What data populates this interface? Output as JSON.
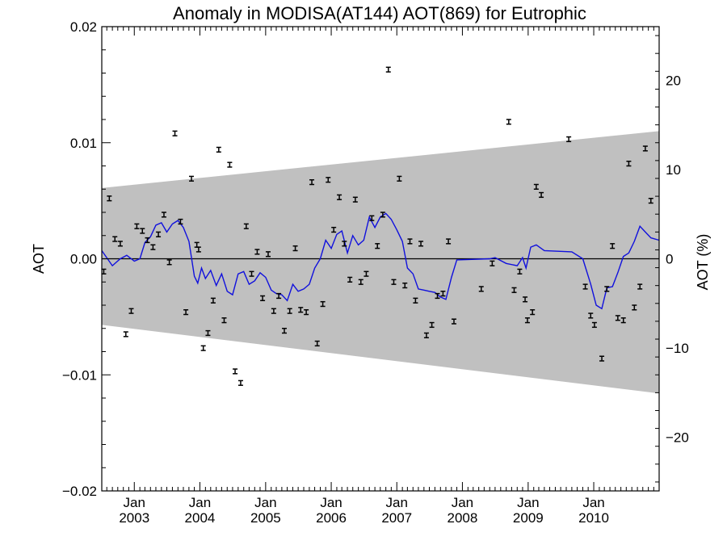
{
  "chart_data": {
    "type": "scatter",
    "title": "Anomaly in MODISA(AT144) AOT(869) for Eutrophic",
    "ylabel": "AOT",
    "ylabel_right": "AOT (%)",
    "xlim": [
      "2002-07-04",
      "2010-12-31"
    ],
    "ylim": [
      -0.02,
      0.02
    ],
    "ylim_right": [
      -26,
      26
    ],
    "x_tick_labels": [
      {
        "date": "2003-01-01",
        "month": "Jan",
        "year": "2003"
      },
      {
        "date": "2004-01-01",
        "month": "Jan",
        "year": "2004"
      },
      {
        "date": "2005-01-01",
        "month": "Jan",
        "year": "2005"
      },
      {
        "date": "2006-01-01",
        "month": "Jan",
        "year": "2006"
      },
      {
        "date": "2007-01-01",
        "month": "Jan",
        "year": "2007"
      },
      {
        "date": "2008-01-01",
        "month": "Jan",
        "year": "2008"
      },
      {
        "date": "2009-01-01",
        "month": "Jan",
        "year": "2009"
      },
      {
        "date": "2010-01-01",
        "month": "Jan",
        "year": "2010"
      }
    ],
    "y_ticks": [
      -0.02,
      -0.01,
      0.0,
      0.01,
      0.02
    ],
    "y_tick_labels": [
      "−0.02",
      "−0.01",
      "0.00",
      "0.01",
      "0.02"
    ],
    "y_right_ticks": [
      -20,
      -10,
      0,
      10,
      20
    ],
    "y_right_tick_labels": [
      "−20",
      "−10",
      "0",
      "10",
      "20"
    ],
    "band": {
      "color": "#c0c0c0",
      "start": {
        "x": "2002-07-04",
        "upper": 0.0061,
        "lower": -0.0057
      },
      "end": {
        "x": "2010-12-31",
        "upper": 0.011,
        "lower": -0.0116
      }
    },
    "zero_line": 0,
    "series": [
      {
        "kind": "points_with_errorbars",
        "color": "#000000",
        "error": 0.0002,
        "points": [
          {
            "x": "2002-07-15",
            "y": -0.0011
          },
          {
            "x": "2002-08-15",
            "y": 0.0052
          },
          {
            "x": "2002-09-15",
            "y": 0.0017
          },
          {
            "x": "2002-10-15",
            "y": 0.0013
          },
          {
            "x": "2002-11-15",
            "y": -0.0065
          },
          {
            "x": "2002-12-15",
            "y": -0.0045
          },
          {
            "x": "2003-01-15",
            "y": 0.0028
          },
          {
            "x": "2003-02-15",
            "y": 0.0024
          },
          {
            "x": "2003-03-15",
            "y": 0.0016
          },
          {
            "x": "2003-04-15",
            "y": 0.001
          },
          {
            "x": "2003-05-15",
            "y": 0.0021
          },
          {
            "x": "2003-06-15",
            "y": 0.0038
          },
          {
            "x": "2003-07-15",
            "y": -0.0003
          },
          {
            "x": "2003-08-15",
            "y": 0.0108
          },
          {
            "x": "2003-09-15",
            "y": 0.0032
          },
          {
            "x": "2003-10-15",
            "y": -0.0046
          },
          {
            "x": "2003-11-15",
            "y": 0.0069
          },
          {
            "x": "2003-12-15",
            "y": 0.0012
          },
          {
            "x": "2003-12-25",
            "y": 0.0008
          },
          {
            "x": "2004-01-20",
            "y": -0.0077
          },
          {
            "x": "2004-02-15",
            "y": -0.0064
          },
          {
            "x": "2004-03-15",
            "y": -0.0036
          },
          {
            "x": "2004-04-15",
            "y": 0.0094
          },
          {
            "x": "2004-05-15",
            "y": -0.0053
          },
          {
            "x": "2004-06-15",
            "y": 0.0081
          },
          {
            "x": "2004-07-15",
            "y": -0.0097
          },
          {
            "x": "2004-08-15",
            "y": -0.0107
          },
          {
            "x": "2004-09-15",
            "y": 0.0028
          },
          {
            "x": "2004-10-15",
            "y": -0.0013
          },
          {
            "x": "2004-11-15",
            "y": 0.0006
          },
          {
            "x": "2004-12-15",
            "y": -0.0034
          },
          {
            "x": "2005-01-15",
            "y": 0.0004
          },
          {
            "x": "2005-02-15",
            "y": -0.0045
          },
          {
            "x": "2005-03-15",
            "y": -0.0032
          },
          {
            "x": "2005-04-15",
            "y": -0.0062
          },
          {
            "x": "2005-05-15",
            "y": -0.0045
          },
          {
            "x": "2005-06-15",
            "y": 0.0009
          },
          {
            "x": "2005-07-15",
            "y": -0.0044
          },
          {
            "x": "2005-08-15",
            "y": -0.0046
          },
          {
            "x": "2005-09-15",
            "y": 0.0066
          },
          {
            "x": "2005-10-15",
            "y": -0.0073
          },
          {
            "x": "2005-11-15",
            "y": -0.0039
          },
          {
            "x": "2005-12-15",
            "y": 0.0068
          },
          {
            "x": "2006-01-15",
            "y": 0.0025
          },
          {
            "x": "2006-02-15",
            "y": 0.0053
          },
          {
            "x": "2006-03-15",
            "y": 0.0013
          },
          {
            "x": "2006-04-15",
            "y": -0.0018
          },
          {
            "x": "2006-05-15",
            "y": 0.0051
          },
          {
            "x": "2006-06-15",
            "y": -0.002
          },
          {
            "x": "2006-07-15",
            "y": -0.0013
          },
          {
            "x": "2006-08-15",
            "y": 0.0035
          },
          {
            "x": "2006-09-15",
            "y": 0.0011
          },
          {
            "x": "2006-10-15",
            "y": 0.0038
          },
          {
            "x": "2006-11-15",
            "y": 0.0163
          },
          {
            "x": "2006-12-15",
            "y": -0.002
          },
          {
            "x": "2007-01-15",
            "y": 0.0069
          },
          {
            "x": "2007-02-15",
            "y": -0.0023
          },
          {
            "x": "2007-03-15",
            "y": 0.0015
          },
          {
            "x": "2007-04-15",
            "y": -0.0036
          },
          {
            "x": "2007-05-15",
            "y": 0.0013
          },
          {
            "x": "2007-06-15",
            "y": -0.0066
          },
          {
            "x": "2007-07-15",
            "y": -0.0057
          },
          {
            "x": "2007-08-15",
            "y": -0.0032
          },
          {
            "x": "2007-09-15",
            "y": -0.003
          },
          {
            "x": "2007-10-15",
            "y": 0.0015
          },
          {
            "x": "2007-11-15",
            "y": -0.0054
          },
          {
            "x": "2008-04-15",
            "y": -0.0026
          },
          {
            "x": "2008-06-15",
            "y": -0.0004
          },
          {
            "x": "2008-09-15",
            "y": 0.0118
          },
          {
            "x": "2008-10-15",
            "y": -0.0027
          },
          {
            "x": "2008-11-15",
            "y": -0.0011
          },
          {
            "x": "2008-12-15",
            "y": -0.0035
          },
          {
            "x": "2008-12-28",
            "y": -0.0053
          },
          {
            "x": "2009-01-25",
            "y": -0.0046
          },
          {
            "x": "2009-02-15",
            "y": 0.0062
          },
          {
            "x": "2009-03-15",
            "y": 0.0055
          },
          {
            "x": "2009-08-15",
            "y": 0.0103
          },
          {
            "x": "2009-11-15",
            "y": -0.0024
          },
          {
            "x": "2009-12-15",
            "y": -0.0049
          },
          {
            "x": "2010-01-05",
            "y": -0.0057
          },
          {
            "x": "2010-02-15",
            "y": -0.0086
          },
          {
            "x": "2010-03-15",
            "y": -0.0026
          },
          {
            "x": "2010-04-15",
            "y": 0.0011
          },
          {
            "x": "2010-05-15",
            "y": -0.0051
          },
          {
            "x": "2010-06-15",
            "y": -0.0053
          },
          {
            "x": "2010-07-15",
            "y": 0.0082
          },
          {
            "x": "2010-08-15",
            "y": -0.0042
          },
          {
            "x": "2010-09-15",
            "y": -0.0024
          },
          {
            "x": "2010-10-15",
            "y": 0.0095
          },
          {
            "x": "2010-11-15",
            "y": 0.005
          }
        ]
      },
      {
        "kind": "line",
        "color": "#1010dd",
        "points": [
          {
            "x": "2002-07-04",
            "y": 0.0007
          },
          {
            "x": "2002-09-01",
            "y": -0.0006
          },
          {
            "x": "2002-10-15",
            "y": 0.0
          },
          {
            "x": "2002-11-20",
            "y": 0.0003
          },
          {
            "x": "2003-01-01",
            "y": -0.0002
          },
          {
            "x": "2003-02-01",
            "y": 0.0
          },
          {
            "x": "2003-03-01",
            "y": 0.0014
          },
          {
            "x": "2003-04-01",
            "y": 0.0019
          },
          {
            "x": "2003-05-01",
            "y": 0.0029
          },
          {
            "x": "2003-06-01",
            "y": 0.0031
          },
          {
            "x": "2003-07-01",
            "y": 0.0023
          },
          {
            "x": "2003-08-01",
            "y": 0.003
          },
          {
            "x": "2003-09-01",
            "y": 0.0033
          },
          {
            "x": "2003-10-01",
            "y": 0.0027
          },
          {
            "x": "2003-11-01",
            "y": 0.0015
          },
          {
            "x": "2003-12-01",
            "y": -0.0015
          },
          {
            "x": "2003-12-20",
            "y": -0.0021
          },
          {
            "x": "2004-01-10",
            "y": -0.0008
          },
          {
            "x": "2004-02-01",
            "y": -0.0017
          },
          {
            "x": "2004-03-01",
            "y": -0.001
          },
          {
            "x": "2004-04-01",
            "y": -0.0023
          },
          {
            "x": "2004-05-01",
            "y": -0.0013
          },
          {
            "x": "2004-06-01",
            "y": -0.0028
          },
          {
            "x": "2004-07-01",
            "y": -0.0031
          },
          {
            "x": "2004-08-01",
            "y": -0.0013
          },
          {
            "x": "2004-09-01",
            "y": -0.0011
          },
          {
            "x": "2004-10-01",
            "y": -0.0022
          },
          {
            "x": "2004-11-01",
            "y": -0.0019
          },
          {
            "x": "2004-12-01",
            "y": -0.0012
          },
          {
            "x": "2005-01-01",
            "y": -0.0016
          },
          {
            "x": "2005-02-01",
            "y": -0.0027
          },
          {
            "x": "2005-03-01",
            "y": -0.003
          },
          {
            "x": "2005-04-01",
            "y": -0.0031
          },
          {
            "x": "2005-05-01",
            "y": -0.0036
          },
          {
            "x": "2005-06-01",
            "y": -0.0022
          },
          {
            "x": "2005-07-01",
            "y": -0.0028
          },
          {
            "x": "2005-08-01",
            "y": -0.0026
          },
          {
            "x": "2005-09-01",
            "y": -0.0022
          },
          {
            "x": "2005-10-01",
            "y": -0.0008
          },
          {
            "x": "2005-11-01",
            "y": 0.0
          },
          {
            "x": "2005-12-01",
            "y": 0.0016
          },
          {
            "x": "2006-01-01",
            "y": 0.0009
          },
          {
            "x": "2006-02-01",
            "y": 0.0021
          },
          {
            "x": "2006-03-01",
            "y": 0.0024
          },
          {
            "x": "2006-04-01",
            "y": 0.0005
          },
          {
            "x": "2006-05-01",
            "y": 0.002
          },
          {
            "x": "2006-06-01",
            "y": 0.0012
          },
          {
            "x": "2006-07-01",
            "y": 0.0016
          },
          {
            "x": "2006-08-01",
            "y": 0.0036
          },
          {
            "x": "2006-09-01",
            "y": 0.0027
          },
          {
            "x": "2006-10-01",
            "y": 0.0036
          },
          {
            "x": "2006-11-01",
            "y": 0.0039
          },
          {
            "x": "2006-12-01",
            "y": 0.0034
          },
          {
            "x": "2007-01-01",
            "y": 0.0025
          },
          {
            "x": "2007-02-01",
            "y": 0.0015
          },
          {
            "x": "2007-03-01",
            "y": -0.0008
          },
          {
            "x": "2007-04-01",
            "y": -0.0013
          },
          {
            "x": "2007-05-01",
            "y": -0.0026
          },
          {
            "x": "2007-06-01",
            "y": -0.0027
          },
          {
            "x": "2007-07-01",
            "y": -0.0028
          },
          {
            "x": "2007-08-01",
            "y": -0.0029
          },
          {
            "x": "2007-09-01",
            "y": -0.0033
          },
          {
            "x": "2007-10-01",
            "y": -0.0035
          },
          {
            "x": "2007-11-01",
            "y": -0.0016
          },
          {
            "x": "2007-12-01",
            "y": -0.0001
          },
          {
            "x": "2008-06-01",
            "y": 0.0
          },
          {
            "x": "2008-07-01",
            "y": 0.0001
          },
          {
            "x": "2008-09-01",
            "y": -0.0004
          },
          {
            "x": "2008-11-01",
            "y": -0.0006
          },
          {
            "x": "2008-12-01",
            "y": 0.0001
          },
          {
            "x": "2008-12-20",
            "y": -0.0008
          },
          {
            "x": "2009-01-15",
            "y": 0.001
          },
          {
            "x": "2009-02-15",
            "y": 0.0012
          },
          {
            "x": "2009-04-01",
            "y": 0.0007
          },
          {
            "x": "2009-09-01",
            "y": 0.0006
          },
          {
            "x": "2009-11-01",
            "y": 0.0
          },
          {
            "x": "2009-12-15",
            "y": -0.0022
          },
          {
            "x": "2010-01-15",
            "y": -0.004
          },
          {
            "x": "2010-02-15",
            "y": -0.0043
          },
          {
            "x": "2010-03-15",
            "y": -0.0025
          },
          {
            "x": "2010-04-15",
            "y": -0.0024
          },
          {
            "x": "2010-05-15",
            "y": -0.0012
          },
          {
            "x": "2010-06-15",
            "y": 0.0002
          },
          {
            "x": "2010-07-15",
            "y": 0.0005
          },
          {
            "x": "2010-08-15",
            "y": 0.0015
          },
          {
            "x": "2010-09-15",
            "y": 0.0028
          },
          {
            "x": "2010-10-15",
            "y": 0.0023
          },
          {
            "x": "2010-11-15",
            "y": 0.0018
          },
          {
            "x": "2010-12-31",
            "y": 0.0016
          }
        ]
      }
    ]
  }
}
